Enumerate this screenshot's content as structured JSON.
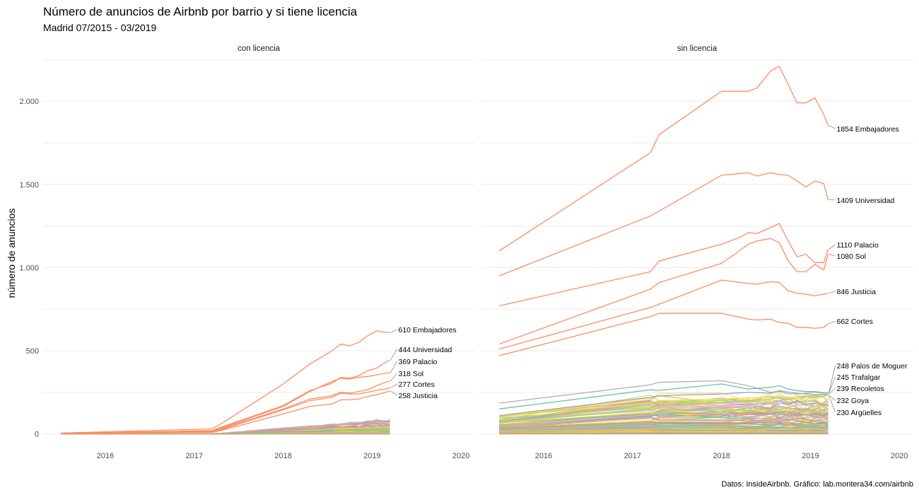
{
  "chart_data": {
    "type": "line",
    "title": "Número de anuncios de Airbnb por barrio y si tiene licencia",
    "subtitle": "Madrid 07/2015 - 03/2019",
    "ylabel": "número de anuncios",
    "caption": "Datos: InsideAirbnb. Gráfico: lab.montera34.com/airbnb",
    "xlim": [
      2015.3,
      2020.15
    ],
    "ylim": [
      -40,
      2260
    ],
    "x_ticks": [
      2016,
      2017,
      2018,
      2019,
      2020
    ],
    "x_tick_labels": [
      "2016",
      "2017",
      "2018",
      "2019",
      "2020"
    ],
    "y_ticks": [
      0,
      500,
      1000,
      1500,
      2000
    ],
    "y_tick_labels": [
      "0",
      "500",
      "1.000",
      "1.500",
      "2.000"
    ],
    "grid": true,
    "colors": {
      "highlight": "#fc8d62",
      "palette": [
        "#66c2a5",
        "#fc8d62",
        "#8da0cb",
        "#e78ac3",
        "#a6d854",
        "#ffd92f",
        "#e5c494",
        "#b3b3b3"
      ]
    },
    "panels": [
      {
        "strip": "con licencia",
        "series": [
          {
            "name": "Embajadores",
            "end_value": 610,
            "label": "610 Embajadores",
            "x": [
              2015.5,
              2017.2,
              2017.3,
              2018.0,
              2018.3,
              2018.55,
              2018.65,
              2018.75,
              2018.85,
              2018.95,
              2019.05,
              2019.15,
              2019.2
            ],
            "y": [
              5,
              30,
              60,
              300,
              420,
              500,
              540,
              530,
              550,
              590,
              620,
              610,
              610
            ]
          },
          {
            "name": "Universidad",
            "end_value": 444,
            "label": "444 Universidad",
            "x": [
              2015.5,
              2017.2,
              2017.3,
              2018.0,
              2018.3,
              2018.55,
              2018.65,
              2018.75,
              2018.85,
              2018.95,
              2019.05,
              2019.15,
              2019.2
            ],
            "y": [
              3,
              20,
              40,
              170,
              260,
              305,
              340,
              335,
              350,
              380,
              395,
              430,
              444
            ]
          },
          {
            "name": "Palacio",
            "end_value": 369,
            "label": "369 Palacio",
            "x": [
              2015.5,
              2017.2,
              2017.3,
              2018.0,
              2018.3,
              2018.55,
              2018.65,
              2018.75,
              2018.85,
              2018.95,
              2019.05,
              2019.15,
              2019.2
            ],
            "y": [
              3,
              18,
              35,
              165,
              255,
              315,
              335,
              330,
              340,
              345,
              355,
              365,
              369
            ]
          },
          {
            "name": "Sol",
            "end_value": 318,
            "label": "318 Sol",
            "x": [
              2015.5,
              2017.2,
              2017.3,
              2018.0,
              2018.3,
              2018.55,
              2018.65,
              2018.75,
              2018.85,
              2018.95,
              2019.05,
              2019.15,
              2019.2
            ],
            "y": [
              3,
              15,
              30,
              150,
              210,
              230,
              250,
              245,
              255,
              265,
              290,
              310,
              318
            ]
          },
          {
            "name": "Cortes",
            "end_value": 277,
            "label": "277 Cortes",
            "x": [
              2015.5,
              2017.2,
              2017.3,
              2018.0,
              2018.3,
              2018.55,
              2018.65,
              2018.75,
              2018.85,
              2018.95,
              2019.05,
              2019.15,
              2019.2
            ],
            "y": [
              2,
              12,
              25,
              145,
              200,
              220,
              245,
              240,
              240,
              250,
              262,
              270,
              277
            ]
          },
          {
            "name": "Justicia",
            "end_value": 258,
            "label": "258 Justicia",
            "x": [
              2015.5,
              2017.2,
              2017.3,
              2018.0,
              2018.3,
              2018.55,
              2018.65,
              2018.75,
              2018.85,
              2018.95,
              2019.05,
              2019.15,
              2019.2
            ],
            "y": [
              2,
              10,
              20,
              120,
              165,
              180,
              205,
              205,
              210,
              225,
              235,
              250,
              258
            ]
          }
        ]
      },
      {
        "strip": "sin licencia",
        "series": [
          {
            "name": "Embajadores",
            "end_value": 1854,
            "label": "1854 Embajadores",
            "x": [
              2015.5,
              2017.2,
              2017.3,
              2018.0,
              2018.3,
              2018.4,
              2018.55,
              2018.65,
              2018.75,
              2018.85,
              2018.95,
              2019.05,
              2019.15,
              2019.2
            ],
            "y": [
              1100,
              1690,
              1800,
              2060,
              2060,
              2080,
              2180,
              2210,
              2100,
              1990,
              1990,
              2020,
              1920,
              1854
            ]
          },
          {
            "name": "Universidad",
            "end_value": 1409,
            "label": "1409 Universidad",
            "x": [
              2015.5,
              2017.2,
              2017.3,
              2018.0,
              2018.3,
              2018.4,
              2018.55,
              2018.65,
              2018.75,
              2018.85,
              2018.95,
              2019.05,
              2019.15,
              2019.2
            ],
            "y": [
              950,
              1310,
              1340,
              1555,
              1570,
              1550,
              1570,
              1560,
              1555,
              1520,
              1485,
              1520,
              1505,
              1409
            ]
          },
          {
            "name": "Palacio",
            "end_value": 1110,
            "label": "1110 Palacio",
            "x": [
              2015.5,
              2017.2,
              2017.3,
              2018.0,
              2018.2,
              2018.3,
              2018.4,
              2018.55,
              2018.65,
              2018.75,
              2018.85,
              2018.95,
              2019.05,
              2019.15,
              2019.2
            ],
            "y": [
              770,
              975,
              1040,
              1140,
              1180,
              1210,
              1205,
              1240,
              1265,
              1160,
              1065,
              1080,
              1030,
              1030,
              1110
            ]
          },
          {
            "name": "Sol",
            "end_value": 1080,
            "label": "1080 Sol",
            "x": [
              2015.5,
              2017.2,
              2017.3,
              2018.0,
              2018.2,
              2018.3,
              2018.4,
              2018.55,
              2018.65,
              2018.75,
              2018.85,
              2018.95,
              2019.05,
              2019.15,
              2019.2
            ],
            "y": [
              540,
              870,
              910,
              1025,
              1100,
              1140,
              1160,
              1175,
              1150,
              1040,
              975,
              975,
              1020,
              985,
              1080
            ]
          },
          {
            "name": "Justicia",
            "end_value": 846,
            "label": "846 Justicia",
            "x": [
              2015.5,
              2017.2,
              2017.3,
              2018.0,
              2018.3,
              2018.4,
              2018.55,
              2018.65,
              2018.75,
              2018.85,
              2018.95,
              2019.05,
              2019.15,
              2019.2
            ],
            "y": [
              510,
              760,
              780,
              925,
              905,
              900,
              915,
              910,
              860,
              845,
              840,
              830,
              840,
              846
            ]
          },
          {
            "name": "Cortes",
            "end_value": 662,
            "label": "662 Cortes",
            "x": [
              2015.5,
              2017.2,
              2017.3,
              2018.0,
              2018.3,
              2018.4,
              2018.55,
              2018.65,
              2018.75,
              2018.85,
              2018.95,
              2019.05,
              2019.15,
              2019.2
            ],
            "y": [
              470,
              705,
              725,
              725,
              690,
              685,
              690,
              670,
              665,
              640,
              640,
              635,
              640,
              662
            ]
          },
          {
            "name": "Palos de Moguer",
            "end_value": 248,
            "label": "248 Palos de Moguer",
            "x": [
              2015.5,
              2017.2,
              2017.3,
              2018.0,
              2018.3,
              2018.55,
              2018.65,
              2018.75,
              2018.85,
              2018.95,
              2019.05,
              2019.15,
              2019.2
            ],
            "y": [
              185,
              295,
              310,
              320,
              290,
              250,
              255,
              240,
              240,
              245,
              250,
              245,
              248
            ]
          },
          {
            "name": "Trafalgar",
            "end_value": 245,
            "label": "245 Trafalgar",
            "x": [
              2015.5,
              2017.2,
              2017.3,
              2018.0,
              2018.3,
              2018.55,
              2018.65,
              2018.75,
              2018.85,
              2018.95,
              2019.05,
              2019.15,
              2019.2
            ],
            "y": [
              150,
              265,
              262,
              300,
              270,
              280,
              290,
              270,
              260,
              255,
              255,
              248,
              245
            ]
          },
          {
            "name": "Recoletos",
            "end_value": 239,
            "label": "239 Recoletos",
            "x": [
              2015.5,
              2017.2,
              2017.3,
              2018.0,
              2018.3,
              2018.55,
              2018.65,
              2018.75,
              2018.85,
              2018.95,
              2019.05,
              2019.15,
              2019.2
            ],
            "y": [
              110,
              220,
              230,
              240,
              250,
              245,
              260,
              250,
              245,
              240,
              235,
              238,
              239
            ]
          },
          {
            "name": "Goya",
            "end_value": 232,
            "label": "232 Goya",
            "x": [
              2015.5,
              2017.2,
              2017.3,
              2018.0,
              2018.3,
              2018.55,
              2018.65,
              2018.75,
              2018.85,
              2018.95,
              2019.05,
              2019.15,
              2019.2
            ],
            "y": [
              105,
              185,
              200,
              210,
              215,
              220,
              230,
              215,
              225,
              230,
              228,
              230,
              232
            ]
          },
          {
            "name": "Argüelles",
            "end_value": 230,
            "label": "230 Argüelles",
            "x": [
              2015.5,
              2017.2,
              2017.3,
              2018.0,
              2018.3,
              2018.55,
              2018.65,
              2018.75,
              2018.85,
              2018.95,
              2019.05,
              2019.15,
              2019.2
            ],
            "y": [
              95,
              160,
              175,
              190,
              200,
              210,
              220,
              205,
              215,
              225,
              222,
              228,
              230
            ]
          }
        ]
      }
    ]
  }
}
